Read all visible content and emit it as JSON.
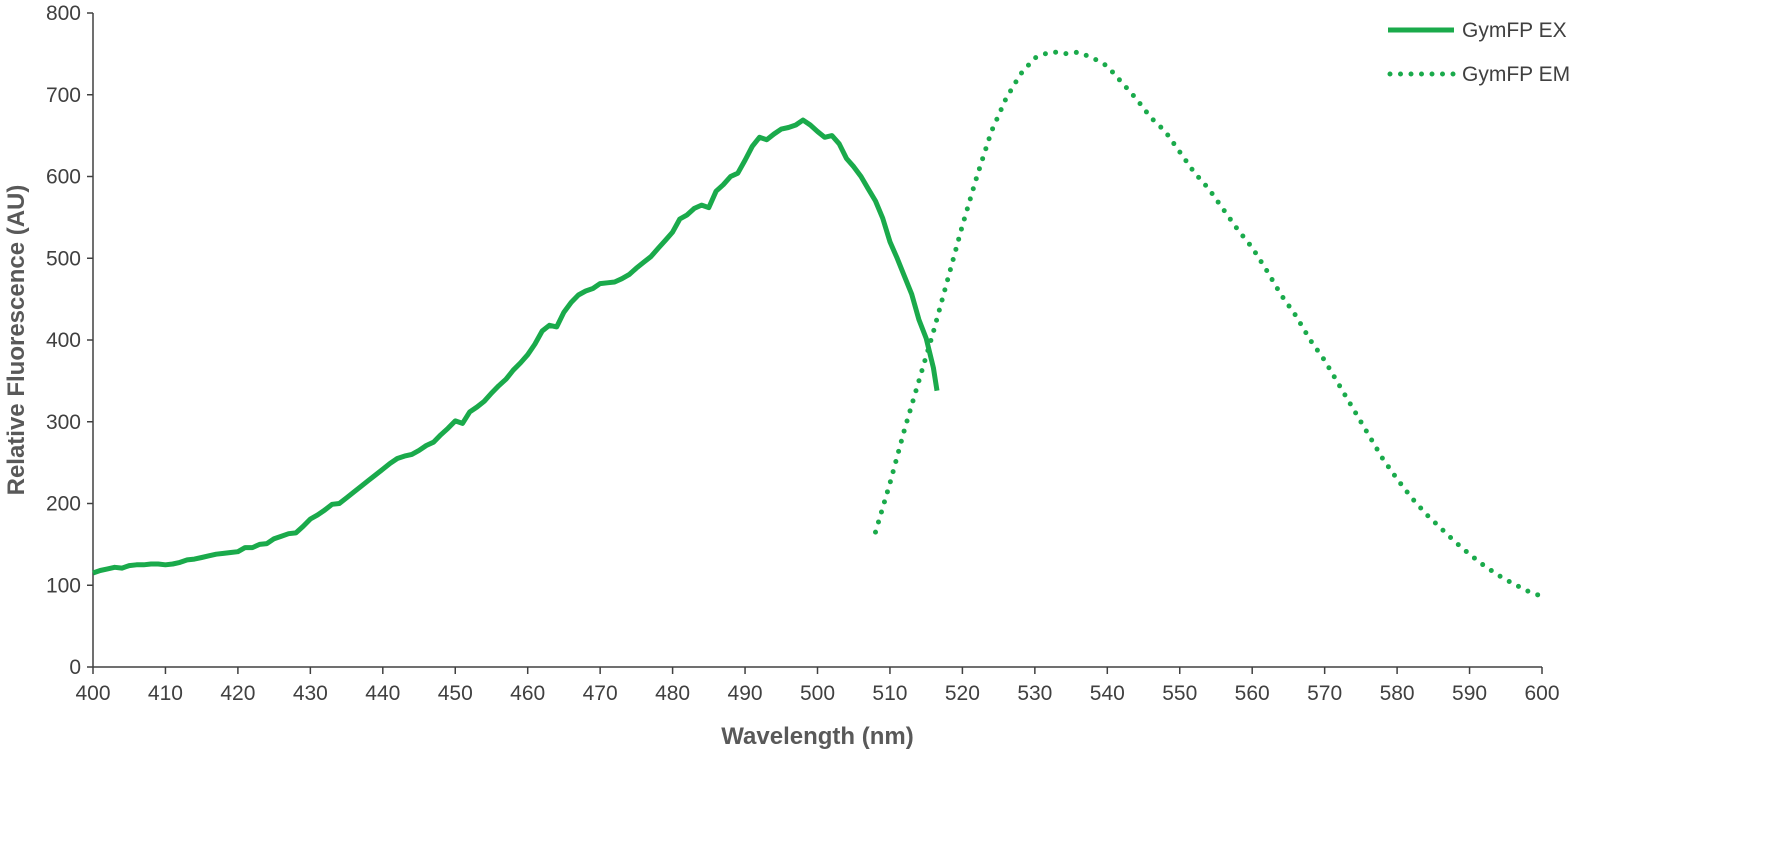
{
  "chart_data": {
    "type": "line",
    "title": "",
    "xlabel": "Wavelength (nm)",
    "ylabel": "Relative Fluorescence (AU)",
    "xlim": [
      400,
      600
    ],
    "ylim": [
      0,
      800
    ],
    "x_ticks": [
      "400",
      "410",
      "420",
      "430",
      "440",
      "450",
      "460",
      "470",
      "480",
      "490",
      "500",
      "510",
      "520",
      "530",
      "540",
      "550",
      "560",
      "570",
      "580",
      "590",
      "600"
    ],
    "y_ticks": [
      "0",
      "100",
      "200",
      "300",
      "400",
      "500",
      "600",
      "700",
      "800"
    ],
    "grid": false,
    "legend_position": "top-right",
    "colors": {
      "series": "#1aaa4b",
      "axis": "#404040",
      "text": "#404040",
      "axis_title": "#595959"
    },
    "series": [
      {
        "name": "GymFP EX",
        "style": "solid",
        "x": [
          400,
          401,
          402,
          403,
          404,
          405,
          406,
          407,
          408,
          409,
          410,
          411,
          412,
          413,
          414,
          415,
          416,
          417,
          418,
          419,
          420,
          421,
          422,
          423,
          424,
          425,
          426,
          427,
          428,
          429,
          430,
          431,
          432,
          433,
          434,
          435,
          436,
          437,
          438,
          439,
          440,
          441,
          442,
          443,
          444,
          445,
          446,
          447,
          448,
          449,
          450,
          451,
          452,
          453,
          454,
          455,
          456,
          457,
          458,
          459,
          460,
          461,
          462,
          463,
          464,
          465,
          466,
          467,
          468,
          469,
          470,
          471,
          472,
          473,
          474,
          475,
          476,
          477,
          478,
          479,
          480,
          481,
          482,
          483,
          484,
          485,
          486,
          487,
          488,
          489,
          490,
          491,
          492,
          493,
          494,
          495,
          496,
          497,
          498,
          499,
          500,
          501,
          502,
          503,
          504,
          505,
          506,
          507,
          508,
          509,
          510,
          511,
          512,
          513,
          514,
          515,
          516,
          516.5
        ],
        "y": [
          115,
          118,
          120,
          122,
          121,
          124,
          125,
          125,
          126,
          126,
          125,
          126,
          128,
          131,
          132,
          134,
          136,
          138,
          139,
          140,
          141,
          146,
          146,
          150,
          151,
          157,
          160,
          163,
          164,
          172,
          181,
          186,
          192,
          199,
          200,
          207,
          214,
          221,
          228,
          235,
          242,
          249,
          255,
          258,
          260,
          265,
          271,
          275,
          284,
          292,
          301,
          298,
          312,
          318,
          325,
          335,
          344,
          352,
          363,
          372,
          382,
          395,
          411,
          418,
          416,
          434,
          446,
          455,
          460,
          463,
          469,
          470,
          471,
          475,
          480,
          488,
          495,
          502,
          512,
          522,
          532,
          548,
          553,
          561,
          565,
          562,
          582,
          590,
          600,
          604,
          620,
          637,
          648,
          645,
          652,
          658,
          660,
          663,
          669,
          663,
          655,
          648,
          650,
          640,
          622,
          612,
          600,
          585,
          570,
          549,
          520,
          500,
          478,
          456,
          425,
          402,
          366,
          338
        ]
      },
      {
        "name": "GymFP EM",
        "style": "dotted",
        "x": [
          508,
          510,
          512,
          514,
          516,
          518,
          520,
          522,
          524,
          526,
          528,
          530,
          532,
          533,
          534,
          536,
          538,
          540,
          542,
          544,
          546,
          548,
          550,
          552,
          554,
          556,
          558,
          560,
          562,
          564,
          566,
          568,
          570,
          572,
          574,
          576,
          578,
          580,
          582,
          584,
          586,
          588,
          590,
          592,
          594,
          596,
          598,
          599.5
        ],
        "y": [
          165,
          225,
          290,
          350,
          410,
          475,
          540,
          600,
          655,
          695,
          725,
          745,
          752,
          752,
          750,
          752,
          745,
          735,
          715,
          695,
          672,
          655,
          630,
          605,
          585,
          560,
          535,
          513,
          485,
          455,
          430,
          400,
          375,
          345,
          315,
          285,
          255,
          230,
          207,
          187,
          170,
          153,
          138,
          124,
          112,
          102,
          93,
          88
        ]
      }
    ]
  }
}
